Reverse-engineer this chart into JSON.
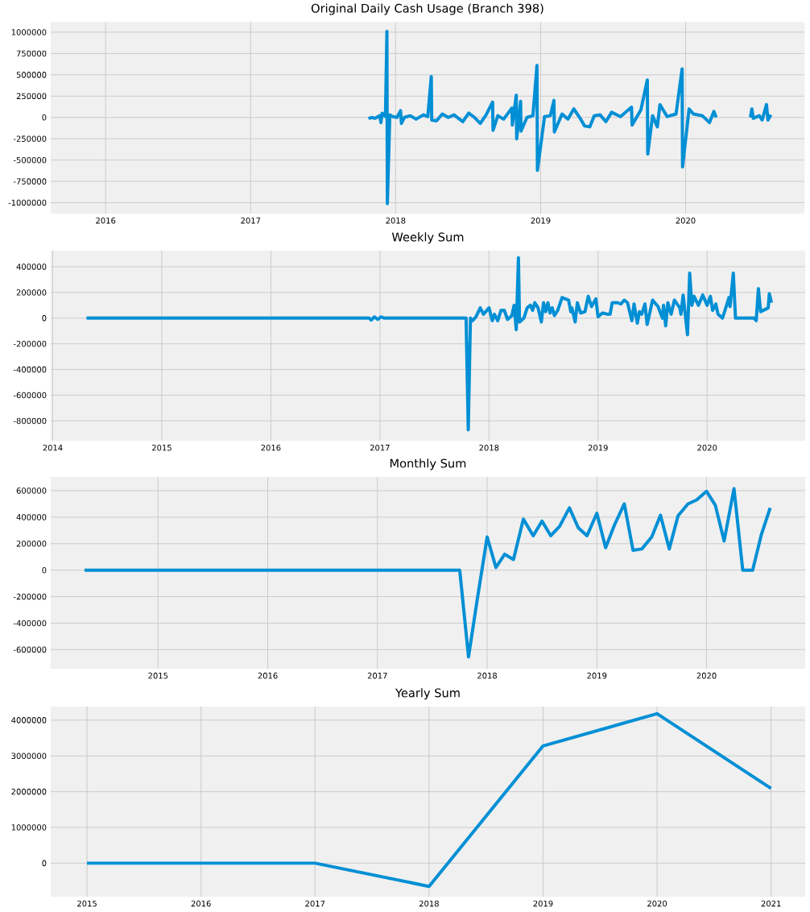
{
  "chart_data": [
    {
      "type": "line",
      "title": "Original Daily Cash Usage (Branch 398)",
      "grid": true,
      "xlim": [
        2015.62,
        2020.82
      ],
      "ylim": [
        -1130000,
        1120000
      ],
      "xticks": [
        2016,
        2017,
        2018,
        2019,
        2020
      ],
      "yticks": [
        -1000000,
        -750000,
        -500000,
        -250000,
        0,
        250000,
        500000,
        750000,
        1000000
      ],
      "x": [
        2017.82,
        2017.823,
        2017.835,
        2017.859,
        2017.889,
        2017.899,
        2017.907,
        2017.93,
        2017.94,
        2017.943,
        2017.96,
        2017.98,
        2018.01,
        2018.034,
        2018.04,
        2018.06,
        2018.101,
        2018.141,
        2018.191,
        2018.222,
        2018.246,
        2018.249,
        2018.282,
        2018.322,
        2018.363,
        2018.403,
        2018.463,
        2018.504,
        2018.544,
        2018.584,
        2018.624,
        2018.669,
        2018.672,
        2018.705,
        2018.745,
        2018.802,
        2018.805,
        2018.832,
        2018.835,
        2018.862,
        2018.865,
        2018.906,
        2018.947,
        2018.975,
        2018.978,
        2019.027,
        2019.067,
        2019.092,
        2019.095,
        2019.148,
        2019.188,
        2019.229,
        2019.269,
        2019.303,
        2019.339,
        2019.37,
        2019.41,
        2019.45,
        2019.49,
        2019.551,
        2019.627,
        2019.631,
        2019.692,
        2019.736,
        2019.739,
        2019.772,
        2019.805,
        2019.823,
        2019.873,
        2019.934,
        2019.976,
        2019.979,
        2020.024,
        2020.054,
        2020.115,
        2020.165,
        2020.195,
        2020.211,
        2020.3,
        2020.447,
        2020.457,
        2020.467,
        2020.508,
        2020.528,
        2020.558,
        2020.568,
        2020.588
      ],
      "series": [
        {
          "color": "#008fd5",
          "values": [
            10000,
            -10000,
            0,
            -10000,
            20000,
            -60000,
            50000,
            10000,
            1010000,
            -1010000,
            30000,
            10000,
            0,
            80000,
            -70000,
            0,
            20000,
            -20000,
            30000,
            10000,
            480000,
            -30000,
            -40000,
            40000,
            0,
            30000,
            -50000,
            50000,
            0,
            -70000,
            30000,
            180000,
            -150000,
            20000,
            -20000,
            110000,
            -90000,
            260000,
            -250000,
            190000,
            -160000,
            0,
            20000,
            610000,
            -620000,
            10000,
            20000,
            200000,
            -170000,
            40000,
            -20000,
            100000,
            0,
            -100000,
            -110000,
            20000,
            30000,
            -50000,
            60000,
            10000,
            120000,
            -90000,
            90000,
            440000,
            -430000,
            20000,
            -110000,
            150000,
            10000,
            40000,
            570000,
            -580000,
            100000,
            40000,
            20000,
            -60000,
            70000,
            0,
            null,
            0,
            100000,
            -10000,
            20000,
            -30000,
            150000,
            -30000,
            30000
          ]
        }
      ]
    },
    {
      "type": "line",
      "title": "Weekly Sum",
      "grid": true,
      "xlim": [
        2013.98,
        2020.9
      ],
      "ylim": [
        -956000,
        525000
      ],
      "xticks": [
        2014,
        2015,
        2016,
        2017,
        2018,
        2019,
        2020
      ],
      "yticks": [
        -800000,
        -600000,
        -400000,
        -200000,
        0,
        200000,
        400000
      ],
      "x": [
        2014.31,
        2016.9,
        2016.92,
        2016.95,
        2016.98,
        2017.01,
        2017.04,
        2017.79,
        2017.81,
        2017.83,
        2017.85,
        2017.88,
        2017.92,
        2017.95,
        2017.97,
        2018.0,
        2018.03,
        2018.05,
        2018.08,
        2018.11,
        2018.14,
        2018.17,
        2018.21,
        2018.23,
        2018.25,
        2018.27,
        2018.28,
        2018.32,
        2018.35,
        2018.38,
        2018.4,
        2018.42,
        2018.45,
        2018.48,
        2018.5,
        2018.52,
        2018.54,
        2018.56,
        2018.58,
        2018.6,
        2018.63,
        2018.67,
        2018.7,
        2018.73,
        2018.75,
        2018.76,
        2018.79,
        2018.81,
        2018.84,
        2018.88,
        2018.91,
        2018.94,
        2018.98,
        2019.0,
        2019.04,
        2019.09,
        2019.11,
        2019.13,
        2019.16,
        2019.18,
        2019.21,
        2019.24,
        2019.27,
        2019.31,
        2019.33,
        2019.36,
        2019.38,
        2019.4,
        2019.43,
        2019.45,
        2019.5,
        2019.55,
        2019.59,
        2019.6,
        2019.62,
        2019.64,
        2019.67,
        2019.7,
        2019.75,
        2019.76,
        2019.78,
        2019.82,
        2019.84,
        2019.86,
        2019.88,
        2019.92,
        2019.96,
        2020.0,
        2020.03,
        2020.05,
        2020.08,
        2020.1,
        2020.14,
        2020.16,
        2020.2,
        2020.21,
        2020.24,
        2020.26,
        2020.43,
        2020.45,
        2020.47,
        2020.49,
        2020.56,
        2020.57,
        2020.59
      ],
      "series": [
        {
          "color": "#008fd5",
          "values": [
            0,
            0,
            -15000,
            10000,
            -10000,
            10000,
            0,
            0,
            -870000,
            0,
            -20000,
            10000,
            80000,
            30000,
            50000,
            80000,
            -20000,
            30000,
            -20000,
            60000,
            60000,
            -10000,
            20000,
            100000,
            -90000,
            470000,
            -30000,
            0,
            80000,
            100000,
            60000,
            120000,
            80000,
            -30000,
            120000,
            50000,
            120000,
            40000,
            80000,
            20000,
            60000,
            160000,
            150000,
            140000,
            50000,
            80000,
            -30000,
            120000,
            40000,
            50000,
            170000,
            90000,
            150000,
            10000,
            40000,
            30000,
            30000,
            120000,
            120000,
            120000,
            110000,
            140000,
            120000,
            -20000,
            110000,
            -40000,
            50000,
            30000,
            110000,
            -50000,
            140000,
            90000,
            0,
            100000,
            -60000,
            120000,
            30000,
            140000,
            80000,
            30000,
            180000,
            -130000,
            350000,
            100000,
            170000,
            100000,
            180000,
            100000,
            170000,
            60000,
            110000,
            30000,
            0,
            50000,
            160000,
            90000,
            350000,
            0,
            0,
            -20000,
            230000,
            50000,
            80000,
            190000,
            120000
          ]
        }
      ]
    },
    {
      "type": "line",
      "title": "Monthly Sum",
      "grid": true,
      "xlim": [
        2014.02,
        2020.9
      ],
      "ylim": [
        -745000,
        703000
      ],
      "xticks": [
        2015,
        2016,
        2017,
        2018,
        2019,
        2020
      ],
      "yticks": [
        -600000,
        -400000,
        -200000,
        0,
        200000,
        400000,
        600000
      ],
      "x": [
        2014.33,
        2017.75,
        2017.83,
        2017.91,
        2018.0,
        2018.08,
        2018.16,
        2018.24,
        2018.33,
        2018.42,
        2018.5,
        2018.58,
        2018.66,
        2018.75,
        2018.83,
        2018.91,
        2019.0,
        2019.08,
        2019.16,
        2019.25,
        2019.33,
        2019.41,
        2019.5,
        2019.58,
        2019.66,
        2019.74,
        2019.83,
        2019.91,
        2020.0,
        2020.08,
        2020.16,
        2020.25,
        2020.33,
        2020.42,
        2020.5,
        2020.58
      ],
      "series": [
        {
          "color": "#008fd5",
          "values": [
            0,
            0,
            -655000,
            -220000,
            250000,
            20000,
            120000,
            80000,
            385000,
            260000,
            370000,
            260000,
            330000,
            470000,
            320000,
            260000,
            430000,
            170000,
            340000,
            500000,
            150000,
            160000,
            250000,
            415000,
            160000,
            410000,
            500000,
            530000,
            595000,
            490000,
            220000,
            615000,
            0,
            0,
            270000,
            470000
          ]
        }
      ]
    },
    {
      "type": "line",
      "title": "Yearly Sum",
      "grid": true,
      "xlim": [
        2014.68,
        2021.3
      ],
      "ylim": [
        -940000,
        4380000
      ],
      "xticks": [
        2015,
        2016,
        2017,
        2018,
        2019,
        2020,
        2021
      ],
      "yticks": [
        0,
        1000000,
        2000000,
        3000000,
        4000000
      ],
      "x": [
        2015,
        2016,
        2017,
        2018,
        2019,
        2020,
        2021
      ],
      "series": [
        {
          "color": "#008fd5",
          "values": [
            0,
            0,
            0,
            -650000,
            3280000,
            4180000,
            2090000
          ]
        }
      ]
    }
  ]
}
